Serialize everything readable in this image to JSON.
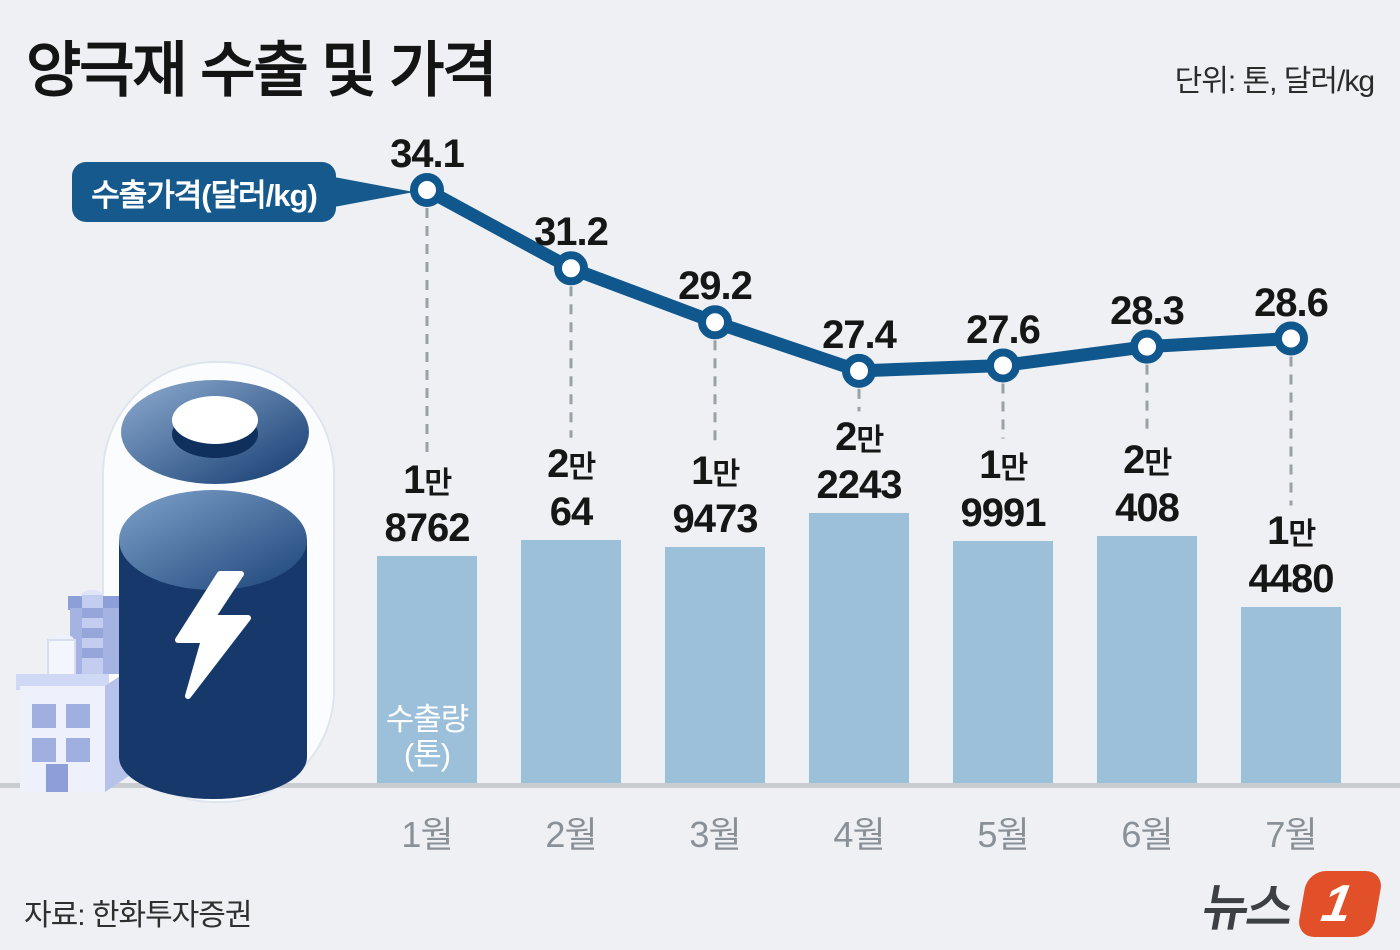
{
  "header": {
    "title": "양극재 수출 및 가격",
    "unit": "단위: 톤, 달러/kg"
  },
  "callout": {
    "label": "수출가격(달러/kg)"
  },
  "volume_axis_label": {
    "line1": "수출량",
    "line2": "(톤)"
  },
  "footer": {
    "source": "자료: 한화투자증권",
    "logo_text": "뉴스",
    "logo_digit": "1"
  },
  "colors": {
    "background": "#eef0f4",
    "line": "#0f578c",
    "bar": "#9cbfda",
    "callout_bg": "#16598c",
    "axis": "#c9cdd2",
    "dash": "#9ba1a8",
    "logo_orange": "#e2502a"
  },
  "chart_data": {
    "type": "combo",
    "title": "양극재 수출 및 가격",
    "categories": [
      "1월",
      "2월",
      "3월",
      "4월",
      "5월",
      "6월",
      "7월"
    ],
    "series": [
      {
        "name": "수출가격(달러/kg)",
        "type": "line",
        "unit": "달러/kg",
        "values": [
          34.1,
          31.2,
          29.2,
          27.4,
          27.6,
          28.3,
          28.6
        ]
      },
      {
        "name": "수출량(톤)",
        "type": "bar",
        "unit": "톤",
        "values": [
          18762,
          20064,
          19473,
          22243,
          19991,
          20408,
          14480
        ],
        "value_labels": [
          {
            "man": "1",
            "rest": "8762"
          },
          {
            "man": "2",
            "rest": "64"
          },
          {
            "man": "1",
            "rest": "9473"
          },
          {
            "man": "2",
            "rest": "2243"
          },
          {
            "man": "1",
            "rest": "9991"
          },
          {
            "man": "2",
            "rest": "408"
          },
          {
            "man": "1",
            "rest": "4480"
          }
        ]
      }
    ],
    "grid": false,
    "legend_position": "callout-left"
  }
}
